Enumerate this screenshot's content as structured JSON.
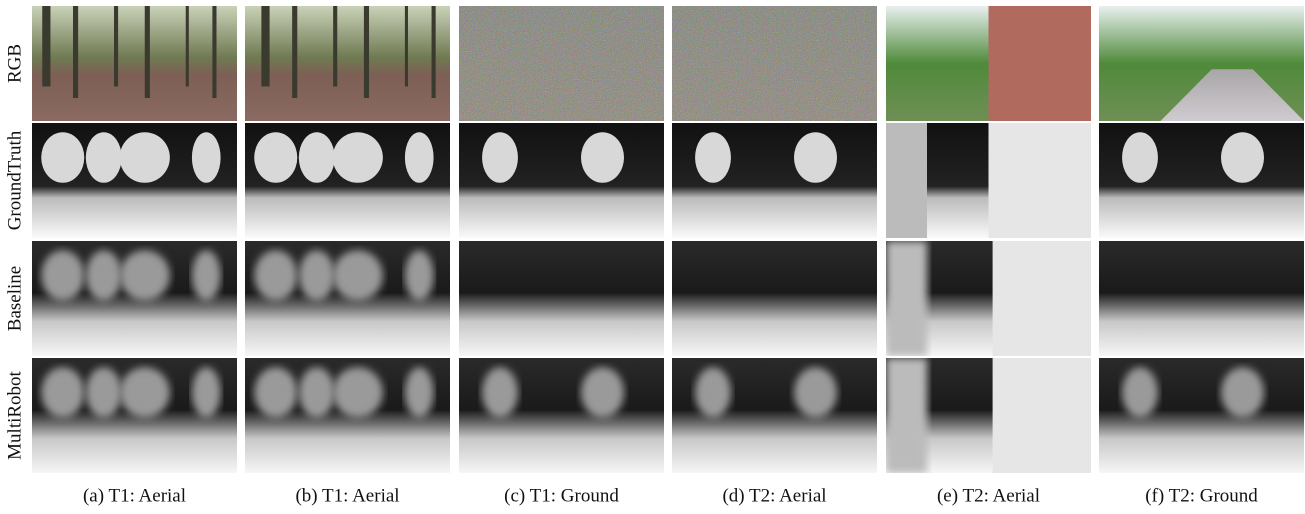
{
  "row_labels": [
    "RGB",
    "GroundTruth",
    "Baseline",
    "MultiRobot"
  ],
  "captions": [
    "(a) T1: Aerial",
    "(b) T1: Aerial",
    "(c) T1: Ground",
    "(d) T2: Aerial",
    "(e) T2: Aerial",
    "(f) T2: Ground"
  ]
}
